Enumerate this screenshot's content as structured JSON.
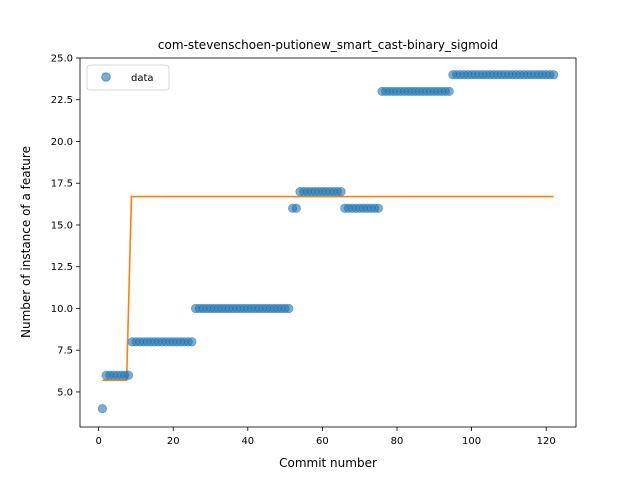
{
  "chart_data": {
    "type": "scatter",
    "title": "com-stevenschoen-putionew_smart_cast-binary_sigmoid",
    "xlabel": "Commit number",
    "ylabel": "Number of instance of a feature",
    "xlim": [
      -5,
      128
    ],
    "ylim": [
      2.9,
      25.0
    ],
    "xticks": [
      0,
      20,
      40,
      60,
      80,
      100,
      120
    ],
    "yticks": [
      5.0,
      7.5,
      10.0,
      12.5,
      15.0,
      17.5,
      20.0,
      22.5,
      25.0
    ],
    "ytick_labels": [
      "5.0",
      "7.5",
      "10.0",
      "12.5",
      "15.0",
      "17.5",
      "20.0",
      "22.5",
      "25.0"
    ],
    "grid": false,
    "legend": {
      "position": "top-left",
      "entries": [
        "data"
      ]
    },
    "colors": {
      "data": "#1f77b4",
      "fit": "#ff7f0e"
    },
    "series": [
      {
        "name": "data",
        "kind": "scatter",
        "segments": [
          {
            "x_from": 1,
            "x_to": 1,
            "y": 4
          },
          {
            "x_from": 2,
            "x_to": 8,
            "y": 6
          },
          {
            "x_from": 9,
            "x_to": 25,
            "y": 8
          },
          {
            "x_from": 26,
            "x_to": 51,
            "y": 10
          },
          {
            "x_from": 52,
            "x_to": 53,
            "y": 16
          },
          {
            "x_from": 54,
            "x_to": 65,
            "y": 17
          },
          {
            "x_from": 66,
            "x_to": 75,
            "y": 16
          },
          {
            "x_from": 76,
            "x_to": 94,
            "y": 23
          },
          {
            "x_from": 95,
            "x_to": 122,
            "y": 24
          }
        ]
      },
      {
        "kind": "line",
        "x": [
          1,
          7.5,
          8.8,
          122
        ],
        "y": [
          5.7,
          5.7,
          16.7,
          16.7
        ]
      }
    ]
  }
}
